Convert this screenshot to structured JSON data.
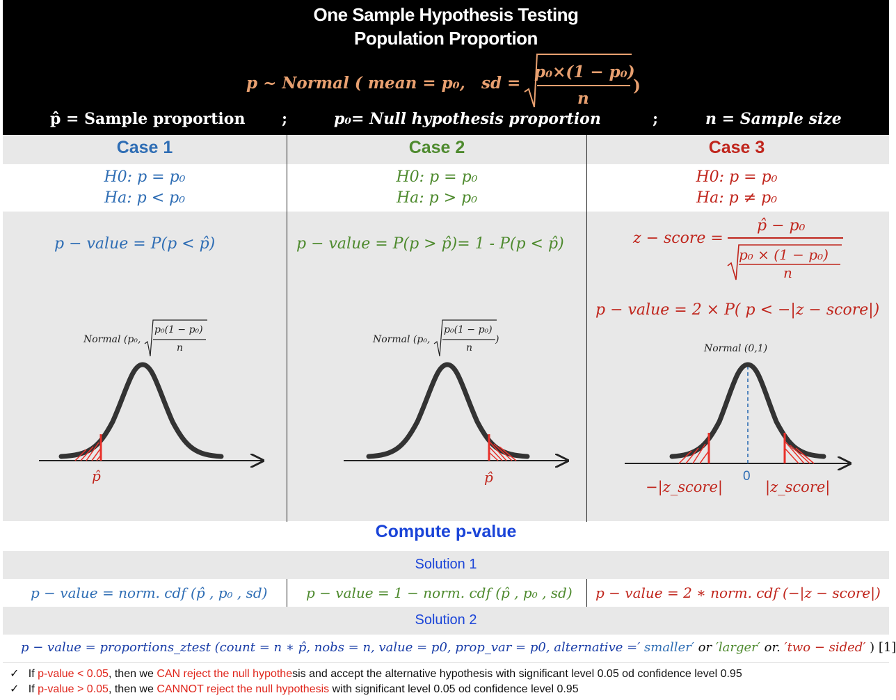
{
  "header": {
    "title_line1": "One Sample Hypothesis Testing",
    "title_line2": "Population Proportion",
    "distribution": "p ~ Normal ( mean = p₀,",
    "sd_label": "sd =",
    "sd_numerator": "p₀×(1 − p₀)",
    "sd_denominator": "n",
    "sd_close": ")",
    "def_phat": "p̂ = Sample proportion",
    "sep1": ";",
    "def_p0": "p₀= Null hypothesis proportion",
    "sep2": ";",
    "def_n": "n = Sample size"
  },
  "cases": [
    {
      "title": "Case 1",
      "h0": "H0:  p  = p₀",
      "ha": "Ha:  p < p₀",
      "pvalue": "p − value  =  P(p  <  p̂)",
      "normal_label": "Normal (p₀,",
      "normal_num": "p₀(1 − p₀)",
      "normal_den": "n",
      "marker": "p̂"
    },
    {
      "title": "Case 2",
      "h0": "H0:  p  = p₀",
      "ha": "Ha:  p > p₀",
      "pvalue": "p − value  =  P(p >  p̂)= 1 - P(p <  p̂)",
      "normal_label": "Normal (p₀,",
      "normal_num": "p₀(1 − p₀)",
      "normal_den": "n",
      "normal_close": ")",
      "marker": "p̂"
    },
    {
      "title": "Case 3",
      "h0": "H0:  p  = p₀",
      "ha": "Ha:  p  ≠ p₀",
      "zscore_label": "z − score =",
      "zscore_num": "p̂  − p₀",
      "zscore_den_num": "p₀ × (1  − p₀)",
      "zscore_den_den": "n",
      "pvalue": "p − value  = 2 × P( p < −|z − score|)",
      "normal_label": "Normal (0,1)",
      "marker_left": "−|z_score|",
      "marker_zero": "0",
      "marker_right": "|z_score|"
    }
  ],
  "compute": {
    "title": "Compute p-value",
    "solution1": "Solution 1",
    "formula1": "p − value  = norm. cdf (p̂ , p₀ , sd)",
    "formula2": "p − value  = 1  −  norm. cdf (p̂ , p₀ , sd)",
    "formula3": "p − value  = 2  ∗  norm. cdf (−|z − score|)",
    "solution2": "Solution 2",
    "ztest_a": "p − value =  proportions_ztest (count = n  ∗ p̂, nobs = n, value = p0, prop_var  =  p0, alternative =′",
    "ztest_smaller": "smaller′",
    "ztest_or1": "  or  ",
    "ztest_larger": "′larger′",
    "ztest_or2": "  or.",
    "ztest_two": "′two − sided′",
    "ztest_end": ") [1]"
  },
  "notes": [
    {
      "check": "✓",
      "pre": "If ",
      "red1": "p-value < 0.05",
      "mid": ", then we ",
      "red2": "CAN reject the null hypothe",
      "post": "sis and accept the alternative hypothesis  with significant level 0.05 od confidence level 0.95"
    },
    {
      "check": "✓",
      "pre": "If ",
      "red1": "p-value > 0.05",
      "mid": ", then we ",
      "red2": "CANNOT reject the null hypothesis",
      "post": " with significant level 0.05 od confidence level 0.95"
    }
  ],
  "colors": {
    "case1": "#2e6db4",
    "case2": "#4e8a2e",
    "case3": "#c0251c",
    "header_formula": "#e8a070",
    "compute_title": "#1a44d8"
  }
}
